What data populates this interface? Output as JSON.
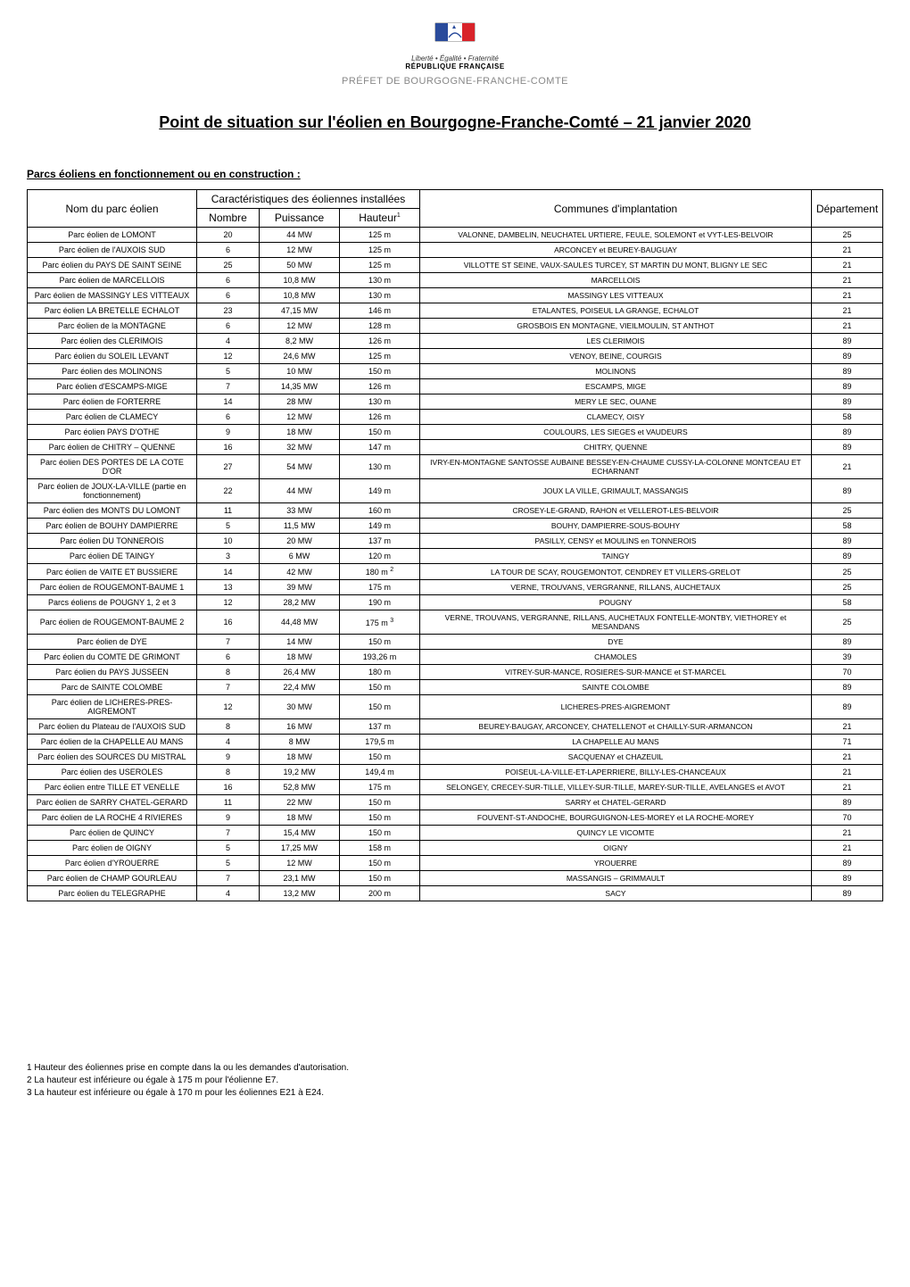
{
  "logo": {
    "caption": "Liberté • Égalité • Fraternité",
    "republique": "RÉPUBLIQUE FRANÇAISE"
  },
  "prefet": "PRÉFET DE BOURGOGNE-FRANCHE-COMTE",
  "main_title": "Point de situation sur l'éolien en Bourgogne-Franche-Comté – 21 janvier 2020",
  "subtitle": "Parcs éoliens en fonctionnement ou en construction :",
  "table": {
    "headers": {
      "nom": "Nom du parc éolien",
      "carac": "Caractéristiques des éoliennes installées",
      "nombre": "Nombre",
      "puissance": "Puissance",
      "hauteur": "Hauteur",
      "hauteur_sup": "1",
      "communes": "Communes d'implantation",
      "dept": "Département"
    },
    "rows": [
      {
        "nom": "Parc éolien de LOMONT",
        "nb": "20",
        "pw": "44 MW",
        "ht": "125 m",
        "com": "VALONNE, DAMBELIN, NEUCHATEL URTIERE, FEULE, SOLEMONT et VYT-LES-BELVOIR",
        "dep": "25"
      },
      {
        "nom": "Parc éolien de l'AUXOIS SUD",
        "nb": "6",
        "pw": "12 MW",
        "ht": "125 m",
        "com": "ARCONCEY et BEUREY-BAUGUAY",
        "dep": "21"
      },
      {
        "nom": "Parc éolien du PAYS DE SAINT SEINE",
        "nb": "25",
        "pw": "50 MW",
        "ht": "125 m",
        "com": "VILLOTTE ST SEINE, VAUX-SAULES TURCEY, ST MARTIN DU MONT, BLIGNY LE SEC",
        "dep": "21"
      },
      {
        "nom": "Parc éolien de MARCELLOIS",
        "nb": "6",
        "pw": "10,8 MW",
        "ht": "130 m",
        "com": "MARCELLOIS",
        "dep": "21"
      },
      {
        "nom": "Parc éolien de MASSINGY LES VITTEAUX",
        "nb": "6",
        "pw": "10,8 MW",
        "ht": "130 m",
        "com": "MASSINGY LES VITTEAUX",
        "dep": "21"
      },
      {
        "nom": "Parc éolien LA BRETELLE ECHALOT",
        "nb": "23",
        "pw": "47,15 MW",
        "ht": "146 m",
        "com": "ETALANTES, POISEUL LA GRANGE, ECHALOT",
        "dep": "21"
      },
      {
        "nom": "Parc éolien de la MONTAGNE",
        "nb": "6",
        "pw": "12 MW",
        "ht": "128 m",
        "com": "GROSBOIS EN MONTAGNE, VIEILMOULIN, ST ANTHOT",
        "dep": "21"
      },
      {
        "nom": "Parc éolien des CLERIMOIS",
        "nb": "4",
        "pw": "8,2 MW",
        "ht": "126 m",
        "com": "LES CLERIMOIS",
        "dep": "89"
      },
      {
        "nom": "Parc éolien du SOLEIL LEVANT",
        "nb": "12",
        "pw": "24,6 MW",
        "ht": "125 m",
        "com": "VENOY, BEINE, COURGIS",
        "dep": "89"
      },
      {
        "nom": "Parc éolien des MOLINONS",
        "nb": "5",
        "pw": "10 MW",
        "ht": "150 m",
        "com": "MOLINONS",
        "dep": "89"
      },
      {
        "nom": "Parc éolien d'ESCAMPS-MIGE",
        "nb": "7",
        "pw": "14,35 MW",
        "ht": "126 m",
        "com": "ESCAMPS, MIGE",
        "dep": "89"
      },
      {
        "nom": "Parc éolien de FORTERRE",
        "nb": "14",
        "pw": "28 MW",
        "ht": "130 m",
        "com": "MERY LE SEC, OUANE",
        "dep": "89"
      },
      {
        "nom": "Parc éolien de CLAMECY",
        "nb": "6",
        "pw": "12 MW",
        "ht": "126 m",
        "com": "CLAMECY, OISY",
        "dep": "58"
      },
      {
        "nom": "Parc éolien PAYS D'OTHE",
        "nb": "9",
        "pw": "18 MW",
        "ht": "150 m",
        "com": "COULOURS, LES SIEGES et VAUDEURS",
        "dep": "89"
      },
      {
        "nom": "Parc éolien de CHITRY – QUENNE",
        "nb": "16",
        "pw": "32 MW",
        "ht": "147 m",
        "com": "CHITRY, QUENNE",
        "dep": "89"
      },
      {
        "nom": "Parc éolien DES PORTES DE LA COTE D'OR",
        "nb": "27",
        "pw": "54 MW",
        "ht": "130 m",
        "com": "IVRY-EN-MONTAGNE SANTOSSE AUBAINE BESSEY-EN-CHAUME CUSSY-LA-COLONNE MONTCEAU ET ECHARNANT",
        "dep": "21"
      },
      {
        "nom": "Parc éolien de  JOUX-LA-VILLE (partie en fonctionnement)",
        "nb": "22",
        "pw": "44 MW",
        "ht": "149 m",
        "com": "JOUX LA VILLE, GRIMAULT, MASSANGIS",
        "dep": "89"
      },
      {
        "nom": "Parc éolien des MONTS DU LOMONT",
        "nb": "11",
        "pw": "33 MW",
        "ht": "160 m",
        "com": "CROSEY-LE-GRAND, RAHON et VELLEROT-LES-BELVOIR",
        "dep": "25"
      },
      {
        "nom": "Parc éolien de BOUHY DAMPIERRE",
        "nb": "5",
        "pw": "11,5 MW",
        "ht": "149 m",
        "com": "BOUHY, DAMPIERRE-SOUS-BOUHY",
        "dep": "58"
      },
      {
        "nom": "Parc éolien DU TONNEROIS",
        "nb": "10",
        "pw": "20 MW",
        "ht": "137 m",
        "com": "PASILLY, CENSY et MOULINS en TONNEROIS",
        "dep": "89"
      },
      {
        "nom": "Parc éolien DE TAINGY",
        "nb": "3",
        "pw": "6 MW",
        "ht": "120 m",
        "com": "TAINGY",
        "dep": "89"
      },
      {
        "nom": "Parc éolien de VAITE ET BUSSIERE",
        "nb": "14",
        "pw": "42 MW",
        "ht": "180 m",
        "ht_sup": "2",
        "com": "LA TOUR DE SCAY, ROUGEMONTOT, CENDREY ET VILLERS-GRELOT",
        "dep": "25"
      },
      {
        "nom": "Parc éolien de ROUGEMONT-BAUME 1",
        "nb": "13",
        "pw": "39 MW",
        "ht": "175 m",
        "com": "VERNE, TROUVANS, VERGRANNE, RILLANS, AUCHETAUX",
        "dep": "25"
      },
      {
        "nom": "Parcs éoliens de POUGNY 1, 2 et 3",
        "nb": "12",
        "pw": "28,2 MW",
        "ht": "190 m",
        "com": "POUGNY",
        "dep": "58"
      },
      {
        "nom": "Parc éolien de ROUGEMONT-BAUME 2",
        "nb": "16",
        "pw": "44,48 MW",
        "ht": "175 m",
        "ht_sup": "3",
        "com": "VERNE, TROUVANS, VERGRANNE, RILLANS, AUCHETAUX FONTELLE-MONTBY, VIETHOREY et MESANDANS",
        "dep": "25"
      },
      {
        "nom": "Parc éolien de DYE",
        "nb": "7",
        "pw": "14 MW",
        "ht": "150 m",
        "com": "DYE",
        "dep": "89"
      },
      {
        "nom": "Parc éolien du COMTE DE GRIMONT",
        "nb": "6",
        "pw": "18 MW",
        "ht": "193,26 m",
        "com": "CHAMOLES",
        "dep": "39"
      },
      {
        "nom": "Parc éolien du PAYS JUSSEEN",
        "nb": "8",
        "pw": "26,4 MW",
        "ht": "180 m",
        "com": "VITREY-SUR-MANCE, ROSIERES-SUR-MANCE et ST-MARCEL",
        "dep": "70"
      },
      {
        "nom": "Parc de SAINTE COLOMBE",
        "nb": "7",
        "pw": "22,4 MW",
        "ht": "150 m",
        "com": "SAINTE COLOMBE",
        "dep": "89"
      },
      {
        "nom": "Parc éolien de LICHERES-PRES-AIGREMONT",
        "nb": "12",
        "pw": "30 MW",
        "ht": "150 m",
        "com": "LICHERES-PRES-AIGREMONT",
        "dep": "89"
      },
      {
        "nom": "Parc éolien du Plateau de l'AUXOIS SUD",
        "nb": "8",
        "pw": "16 MW",
        "ht": "137 m",
        "com": "BEUREY-BAUGAY, ARCONCEY, CHATELLENOT et CHAILLY-SUR-ARMANCON",
        "dep": "21"
      },
      {
        "nom": "Parc éolien de la CHAPELLE AU MANS",
        "nb": "4",
        "pw": "8 MW",
        "ht": "179,5 m",
        "com": "LA CHAPELLE AU MANS",
        "dep": "71"
      },
      {
        "nom": "Parc éolien des SOURCES DU MISTRAL",
        "nb": "9",
        "pw": "18 MW",
        "ht": "150 m",
        "com": "SACQUENAY et CHAZEUIL",
        "dep": "21"
      },
      {
        "nom": "Parc éolien des USEROLES",
        "nb": "8",
        "pw": "19,2 MW",
        "ht": "149,4 m",
        "com": "POISEUL-LA-VILLE-ET-LAPERRIERE, BILLY-LES-CHANCEAUX",
        "dep": "21"
      },
      {
        "nom": "Parc éolien entre TILLE ET VENELLE",
        "nb": "16",
        "pw": "52,8 MW",
        "ht": "175 m",
        "com": "SELONGEY, CRECEY-SUR-TILLE, VILLEY-SUR-TILLE, MAREY-SUR-TILLE, AVELANGES et AVOT",
        "dep": "21"
      },
      {
        "nom": "Parc éolien de SARRY CHATEL-GERARD",
        "nb": "11",
        "pw": "22 MW",
        "ht": "150 m",
        "com": "SARRY et CHATEL-GERARD",
        "dep": "89"
      },
      {
        "nom": "Parc éolien de LA ROCHE 4 RIVIERES",
        "nb": "9",
        "pw": "18 MW",
        "ht": "150 m",
        "com": "FOUVENT-ST-ANDOCHE, BOURGUIGNON-LES-MOREY et LA ROCHE-MOREY",
        "dep": "70"
      },
      {
        "nom": "Parc éolien de QUINCY",
        "nb": "7",
        "pw": "15,4 MW",
        "ht": "150 m",
        "com": "QUINCY LE VICOMTE",
        "dep": "21"
      },
      {
        "nom": "Parc éolien de OIGNY",
        "nb": "5",
        "pw": "17,25 MW",
        "ht": "158 m",
        "com": "OIGNY",
        "dep": "21"
      },
      {
        "nom": "Parc éolien d'YROUERRE",
        "nb": "5",
        "pw": "12 MW",
        "ht": "150 m",
        "com": "YROUERRE",
        "dep": "89"
      },
      {
        "nom": "Parc éolien de CHAMP GOURLEAU",
        "nb": "7",
        "pw": "23,1 MW",
        "ht": "150 m",
        "com": "MASSANGIS – GRIMMAULT",
        "dep": "89"
      },
      {
        "nom": "Parc éolien du TELEGRAPHE",
        "nb": "4",
        "pw": "13,2 MW",
        "ht": "200 m",
        "com": "SACY",
        "dep": "89"
      }
    ]
  },
  "footnotes": {
    "f1": "1 Hauteur des éoliennes prise en compte dans la ou les demandes d'autorisation.",
    "f2": "2 La hauteur est inférieure ou égale à 175 m pour l'éolienne E7.",
    "f3": "3 La hauteur est inférieure ou égale à 170 m pour les éoliennes E21 à E24."
  },
  "colors": {
    "text": "#000000",
    "prefet": "#888888",
    "border": "#000000",
    "bg": "#ffffff"
  }
}
